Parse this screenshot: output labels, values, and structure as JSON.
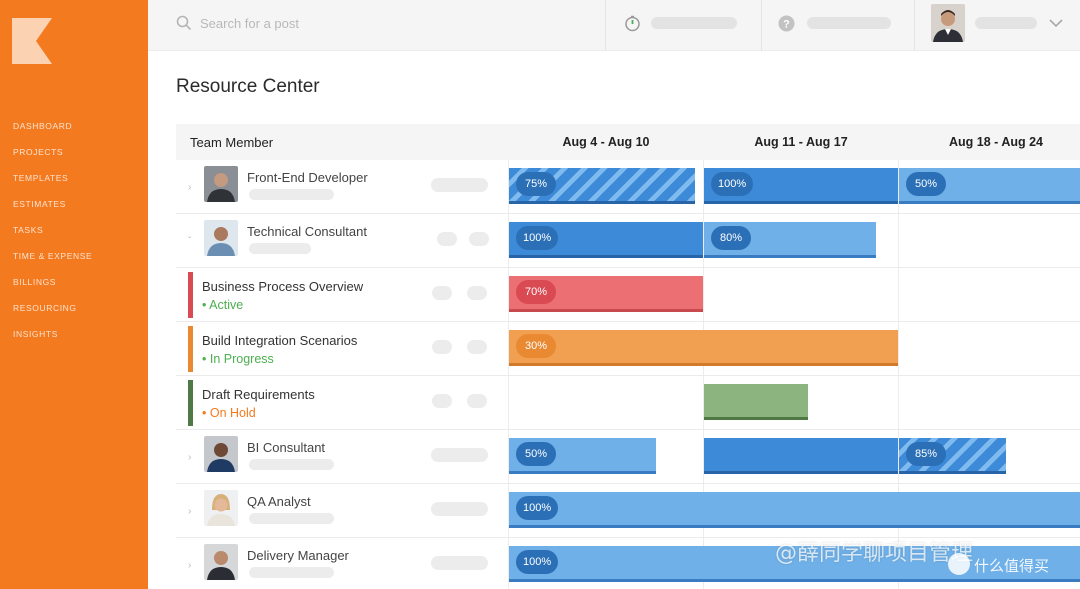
{
  "sidebar": {
    "logo": "kantata-k-logo",
    "accent_color": "#f47a1f",
    "items": [
      {
        "label": "DASHBOARD"
      },
      {
        "label": "PROJECTS"
      },
      {
        "label": "TEMPLATES"
      },
      {
        "label": "ESTIMATES"
      },
      {
        "label": "TASKS"
      },
      {
        "label": "TIME & EXPENSE"
      },
      {
        "label": "BILLINGS"
      },
      {
        "label": "RESOURCING"
      },
      {
        "label": "INSIGHTS"
      }
    ]
  },
  "topbar": {
    "search_placeholder": "Search for a post",
    "search_icon": "search-icon",
    "timer_icon": "timer-icon",
    "help_icon": "help-icon",
    "user_menu_icon": "chevron-down-icon"
  },
  "page": {
    "title": "Resource Center"
  },
  "grid": {
    "header_member": "Team Member",
    "weeks": [
      "Aug 4 - Aug 10",
      "Aug 11 - Aug 17",
      "Aug 18 - Aug 24"
    ],
    "rows": [
      {
        "type": "member",
        "name": "Front-End Developer"
      },
      {
        "type": "member",
        "name": "Technical Consultant"
      },
      {
        "type": "task",
        "name": "Business Process Overview",
        "status": "Active",
        "status_color": "#4caf50",
        "bar_color": "#d94a52"
      },
      {
        "type": "task",
        "name": "Build Integration Scenarios",
        "status": "In Progress",
        "status_color": "#4caf50",
        "bar_color": "#e98a33"
      },
      {
        "type": "task",
        "name": "Draft Requirements",
        "status": "On Hold",
        "status_color": "#f47a1f",
        "bar_color": "#4f7a45"
      },
      {
        "type": "member",
        "name": "BI Consultant"
      },
      {
        "type": "member",
        "name": "QA Analyst"
      },
      {
        "type": "member",
        "name": "Delivery Manager"
      }
    ],
    "allocations": {
      "r0": [
        "75%",
        "100%",
        "50%"
      ],
      "r1": [
        "100%",
        "80%"
      ],
      "r2": [
        "70%"
      ],
      "r3": [
        "30%"
      ],
      "r5": [
        "50%",
        "85%"
      ],
      "r6": [
        "100%"
      ],
      "r7": [
        "100%"
      ]
    }
  },
  "watermark": {
    "text": "@薛同学聊项目管理",
    "brand": "什么值得买"
  }
}
